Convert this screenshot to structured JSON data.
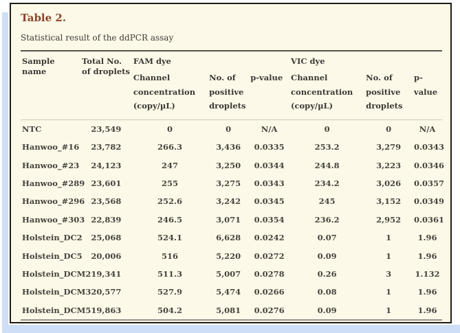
{
  "page": {
    "background_color": "#ffffff",
    "accent_color": "#cedef6",
    "panel_background": "#fdf9e8",
    "panel_border_color": "#1d1c1a",
    "title_color": "#8d4329"
  },
  "table": {
    "title": "Table 2.",
    "caption": "Statistical result of the ddPCR assay",
    "group_headers": {
      "fam": "FAM dye",
      "vic": "VIC dye"
    },
    "columns": {
      "sample": "Sample name",
      "total": "Total No. of droplets",
      "fam_conc": "Channel concentration (copy/µL)",
      "fam_pos": "No. of positive droplets",
      "fam_p": "p-value",
      "vic_conc": "Channel concentration (copy/µL)",
      "vic_pos": "No. of positive droplets",
      "vic_p": "p-value"
    },
    "rows": [
      [
        "NTC",
        "23,549",
        "0",
        "0",
        "N/A",
        "0",
        "0",
        "N/A"
      ],
      [
        "Hanwoo_#16",
        "23,782",
        "266.3",
        "3,436",
        "0.0335",
        "253.2",
        "3,279",
        "0.0343"
      ],
      [
        "Hanwoo_#23",
        "24,123",
        "247",
        "3,250",
        "0.0344",
        "244.8",
        "3,223",
        "0.0346"
      ],
      [
        "Hanwoo_#289",
        "23,601",
        "255",
        "3,275",
        "0.0343",
        "234.2",
        "3,026",
        "0.0357"
      ],
      [
        "Hanwoo_#296",
        "23,568",
        "252.6",
        "3,242",
        "0.0345",
        "245",
        "3,152",
        "0.0349"
      ],
      [
        "Hanwoo_#303",
        "22,839",
        "246.5",
        "3,071",
        "0.0354",
        "236.2",
        "2,952",
        "0.0361"
      ],
      [
        "Holstein_DC2",
        "25,068",
        "524.1",
        "6,628",
        "0.0242",
        "0.07",
        "1",
        "1.96"
      ],
      [
        "Holstein_DC5",
        "20,006",
        "516",
        "5,220",
        "0.0272",
        "0.09",
        "1",
        "1.96"
      ],
      [
        "Holstein_DCM2",
        "19,341",
        "511.3",
        "5,007",
        "0.0278",
        "0.26",
        "3",
        "1.132"
      ],
      [
        "Holstein_DCM3",
        "20,577",
        "527.9",
        "5,474",
        "0.0266",
        "0.08",
        "1",
        "1.96"
      ],
      [
        "Holstein_DCM5",
        "19,863",
        "504.2",
        "5,081",
        "0.0276",
        "0.09",
        "1",
        "1.96"
      ]
    ]
  }
}
